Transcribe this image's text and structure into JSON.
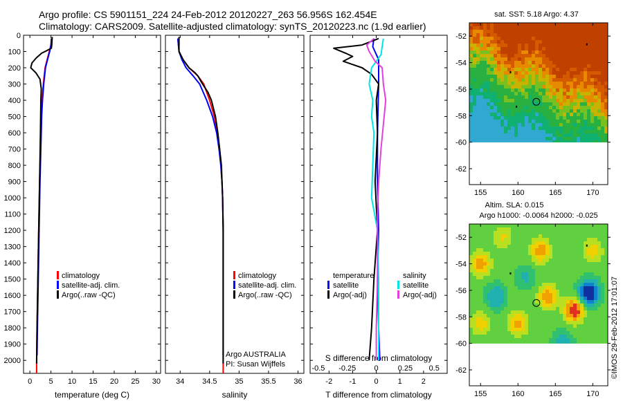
{
  "header": {
    "line1": "Argo profile: CS 5901151_224 24-Feb-2012 20120227_263 56.956S 162.454E",
    "line2": "Climatology: CARS2009. Satellite-adjusted climatology: synTS_20120223.nc (1.9d earlier)"
  },
  "colors": {
    "climatology": "#ff0000",
    "satellite": "#0000ff",
    "argo": "#000000",
    "satellite_s": "#00e5e5",
    "argo_s": "#e040e0"
  },
  "chart_data": [
    {
      "type": "line",
      "panel": "temperature",
      "xlabel": "temperature (deg C)",
      "xlim": [
        -1.5,
        31
      ],
      "ylim": [
        2080,
        0
      ],
      "xticks": [
        0,
        5,
        10,
        15,
        20,
        25,
        30
      ],
      "yticks": [
        0,
        100,
        200,
        300,
        400,
        500,
        600,
        700,
        800,
        900,
        1000,
        1100,
        1200,
        1300,
        1400,
        1500,
        1600,
        1700,
        1800,
        1900,
        2000
      ],
      "legend": [
        "climatology",
        "satellite-adj. clim.",
        "Argo(..raw -QC)"
      ],
      "series": [
        {
          "name": "climatology",
          "color": "climatology",
          "points": [
            [
              5.2,
              20
            ],
            [
              5.0,
              60
            ],
            [
              4.6,
              100
            ],
            [
              4.1,
              150
            ],
            [
              3.6,
              200
            ],
            [
              3.2,
              300
            ],
            [
              2.9,
              400
            ],
            [
              2.7,
              500
            ],
            [
              2.5,
              700
            ],
            [
              2.3,
              900
            ],
            [
              2.1,
              1200
            ],
            [
              1.9,
              1500
            ],
            [
              1.7,
              1800
            ],
            [
              1.6,
              2000
            ],
            [
              1.6,
              2080
            ]
          ]
        },
        {
          "name": "satellite-adj. clim.",
          "color": "satellite",
          "points": [
            [
              5.1,
              20
            ],
            [
              5.0,
              60
            ],
            [
              4.7,
              100
            ],
            [
              4.2,
              150
            ],
            [
              3.7,
              200
            ],
            [
              3.3,
              300
            ],
            [
              3.0,
              400
            ],
            [
              2.8,
              500
            ],
            [
              2.6,
              700
            ],
            [
              2.4,
              900
            ],
            [
              2.2,
              1200
            ],
            [
              2.0,
              1500
            ],
            [
              1.8,
              1800
            ],
            [
              1.7,
              1970
            ]
          ]
        },
        {
          "name": "Argo(..raw -QC)",
          "color": "argo",
          "points": [
            [
              5.3,
              10
            ],
            [
              5.2,
              60
            ],
            [
              5.1,
              80
            ],
            [
              4.0,
              95
            ],
            [
              2.8,
              110
            ],
            [
              1.5,
              140
            ],
            [
              0.5,
              170
            ],
            [
              0.2,
              200
            ],
            [
              1.4,
              230
            ],
            [
              2.4,
              270
            ],
            [
              2.7,
              330
            ],
            [
              2.6,
              400
            ],
            [
              2.5,
              600
            ],
            [
              2.3,
              900
            ],
            [
              2.1,
              1200
            ],
            [
              1.9,
              1500
            ],
            [
              1.7,
              1800
            ],
            [
              1.6,
              2020
            ]
          ]
        }
      ]
    },
    {
      "type": "line",
      "panel": "salinity",
      "xlabel": "salinity",
      "xlim": [
        33.75,
        36.1
      ],
      "ylim": [
        2080,
        0
      ],
      "xticks": [
        34,
        34.5,
        35,
        35.5,
        36
      ],
      "legend": [
        "climatology",
        "satellite-adj. clim.",
        "Argo(..raw -QC)"
      ],
      "annotations": [
        "Argo AUSTRALIA",
        "PI: Susan Wijffels"
      ],
      "series": [
        {
          "name": "climatology",
          "color": "climatology",
          "points": [
            [
              33.96,
              20
            ],
            [
              33.98,
              100
            ],
            [
              34.05,
              150
            ],
            [
              34.15,
              200
            ],
            [
              34.3,
              250
            ],
            [
              34.4,
              300
            ],
            [
              34.5,
              400
            ],
            [
              34.58,
              500
            ],
            [
              34.63,
              600
            ],
            [
              34.67,
              700
            ],
            [
              34.69,
              800
            ],
            [
              34.71,
              900
            ],
            [
              34.72,
              1000
            ],
            [
              34.73,
              1200
            ],
            [
              34.73,
              1600
            ],
            [
              34.73,
              2080
            ]
          ]
        },
        {
          "name": "satellite-adj. clim.",
          "color": "satellite",
          "points": [
            [
              33.96,
              20
            ],
            [
              33.98,
              100
            ],
            [
              34.03,
              150
            ],
            [
              34.1,
              200
            ],
            [
              34.22,
              250
            ],
            [
              34.33,
              300
            ],
            [
              34.45,
              400
            ],
            [
              34.55,
              500
            ],
            [
              34.62,
              600
            ],
            [
              34.66,
              700
            ],
            [
              34.69,
              800
            ],
            [
              34.71,
              900
            ],
            [
              34.72,
              1000
            ],
            [
              34.73,
              1200
            ],
            [
              34.73,
              1600
            ],
            [
              34.73,
              1970
            ]
          ]
        },
        {
          "name": "Argo(..raw -QC)",
          "color": "argo",
          "points": [
            [
              33.98,
              10
            ],
            [
              33.98,
              100
            ],
            [
              34.05,
              150
            ],
            [
              34.15,
              200
            ],
            [
              34.25,
              230
            ],
            [
              34.3,
              250
            ],
            [
              34.38,
              300
            ],
            [
              34.47,
              350
            ],
            [
              34.53,
              400
            ],
            [
              34.6,
              500
            ],
            [
              34.64,
              600
            ],
            [
              34.67,
              700
            ],
            [
              34.7,
              800
            ],
            [
              34.71,
              900
            ],
            [
              34.72,
              1000
            ],
            [
              34.73,
              1200
            ],
            [
              34.73,
              1600
            ],
            [
              34.73,
              2020
            ]
          ]
        }
      ]
    },
    {
      "type": "line",
      "panel": "difference",
      "xlabel": "T difference from climatology",
      "xlabel_top": "S difference from climatology",
      "xlim": [
        -2.8,
        3.0
      ],
      "ylim": [
        2080,
        0
      ],
      "xticks_T": [
        -2,
        -1,
        0,
        1,
        2
      ],
      "xticks_S": [
        "-0.5",
        "-0.25",
        "0",
        "0.25",
        "0.5"
      ],
      "legend_headers": [
        "temperature",
        "salinity"
      ],
      "legend_t": [
        "satellite",
        "Argo(-adj)"
      ],
      "legend_s": [
        "satellite",
        "Argo(-adj)"
      ],
      "series": [
        {
          "name": "satellite",
          "color": "satellite",
          "points": [
            [
              -0.1,
              20
            ],
            [
              -0.15,
              70
            ],
            [
              0.1,
              150
            ],
            [
              0.1,
              300
            ],
            [
              0.05,
              600
            ],
            [
              0.05,
              900
            ],
            [
              0.1,
              1200
            ],
            [
              0.05,
              1500
            ],
            [
              0.1,
              1800
            ],
            [
              0.15,
              2000
            ]
          ]
        },
        {
          "name": "Argo(-adj)",
          "color": "argo",
          "points": [
            [
              0.1,
              20
            ],
            [
              -0.6,
              60
            ],
            [
              -1.8,
              80
            ],
            [
              -1.3,
              110
            ],
            [
              -1.0,
              130
            ],
            [
              -1.4,
              160
            ],
            [
              -0.6,
              200
            ],
            [
              -0.2,
              240
            ],
            [
              0.1,
              300
            ],
            [
              0.0,
              400
            ],
            [
              0.05,
              600
            ],
            [
              -0.05,
              900
            ],
            [
              0.05,
              1200
            ],
            [
              -0.1,
              1500
            ],
            [
              -0.2,
              1800
            ],
            [
              -0.3,
              2000
            ]
          ]
        },
        {
          "name": "satellite",
          "color": "satellite_s",
          "points": [
            [
              0.3,
              20
            ],
            [
              0.2,
              120
            ],
            [
              -0.2,
              200
            ],
            [
              -0.3,
              300
            ],
            [
              -0.15,
              400
            ],
            [
              -0.2,
              500
            ],
            [
              -0.1,
              600
            ],
            [
              -0.15,
              800
            ],
            [
              -0.2,
              1000
            ],
            [
              0.05,
              1200
            ],
            [
              0.1,
              1500
            ],
            [
              0.1,
              1800
            ],
            [
              0.1,
              2000
            ]
          ]
        },
        {
          "name": "Argo(-adj)",
          "color": "argo_s",
          "points": [
            [
              -0.1,
              20
            ],
            [
              -0.4,
              60
            ],
            [
              -0.3,
              100
            ],
            [
              -0.05,
              160
            ],
            [
              0.25,
              200
            ],
            [
              0.3,
              300
            ],
            [
              0.4,
              400
            ],
            [
              0.3,
              550
            ],
            [
              0.2,
              700
            ],
            [
              0.1,
              900
            ],
            [
              0.05,
              1100
            ],
            [
              0.05,
              1500
            ],
            [
              0.0,
              1800
            ],
            [
              0.0,
              2000
            ]
          ]
        }
      ]
    },
    {
      "type": "heatmap",
      "panel": "sst_map",
      "title": "sat. SST: 5.18 Argo: 4.37",
      "xlim": [
        153.5,
        172
      ],
      "ylim": [
        -63.2,
        -51
      ],
      "xticks": [
        155,
        160,
        165,
        170
      ],
      "yticks": [
        -52,
        -54,
        -56,
        -58,
        -60,
        -62
      ],
      "data_extent_lat": [
        -60,
        -51
      ],
      "markers": [
        {
          "lon": 162.454,
          "lat": -56.956,
          "kind": "circle"
        },
        {
          "lon": 169.2,
          "lat": -52.6,
          "kind": "dot"
        },
        {
          "lon": 159.0,
          "lat": -54.7,
          "kind": "dot"
        },
        {
          "lon": 159.8,
          "lat": -57.3,
          "kind": "dot"
        }
      ]
    },
    {
      "type": "heatmap",
      "panel": "sla_map",
      "title": "Altim. SLA: 0.015",
      "subtitle": "Argo h1000: -0.0064 h2000: -0.025",
      "xlim": [
        153.5,
        172
      ],
      "ylim": [
        -63.2,
        -51
      ],
      "xticks": [
        155,
        160,
        165,
        170
      ],
      "yticks": [
        -52,
        -54,
        -56,
        -58,
        -60,
        -62
      ],
      "data_extent_lat": [
        -60,
        -51
      ],
      "markers": [
        {
          "lon": 162.454,
          "lat": -56.956,
          "kind": "circle"
        },
        {
          "lon": 169.2,
          "lat": -52.6,
          "kind": "dot"
        },
        {
          "lon": 159.0,
          "lat": -54.7,
          "kind": "dot"
        }
      ]
    }
  ],
  "watermark": "©IMOS 29-Feb-2012 17:01:07"
}
